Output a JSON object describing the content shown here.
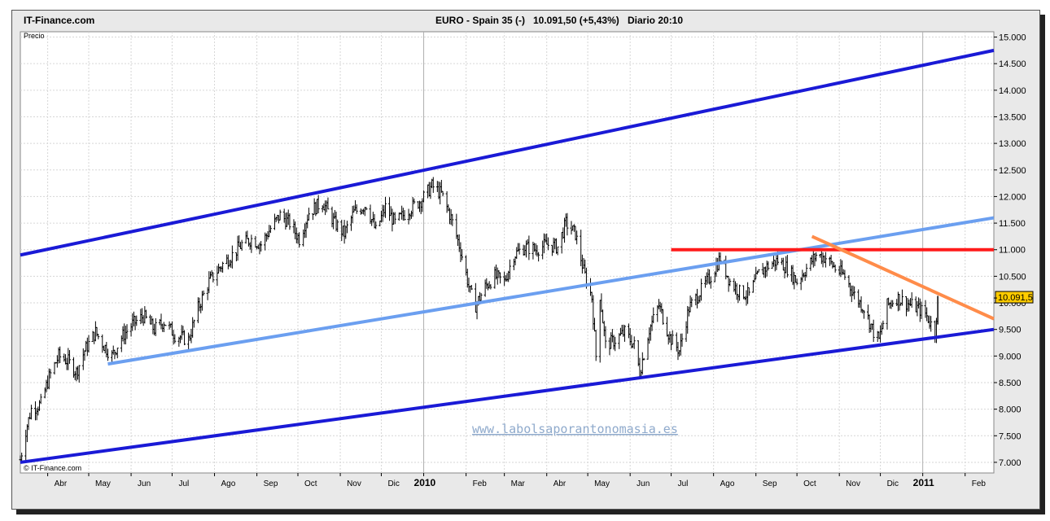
{
  "header": {
    "brand": "IT-Finance.com",
    "instrument": "EURO - Spain 35 (-)",
    "price_change": "10.091,50 (+5,43%)",
    "period_time": "Diario  20:10"
  },
  "panel_label": "Precio",
  "copyright": "© IT-Finance.com",
  "watermark": "www.labolsaporantonomasia.es",
  "current_price_label": "10.091,5",
  "colors": {
    "background": "#ffffff",
    "grid": "#d6d6d6",
    "candles": "#000000",
    "channel_outer": "#1a1ad6",
    "channel_mid": "#6b9ff0",
    "resistance": "#ff1a1a",
    "downtrend": "#ff8c4a",
    "price_box": "#ffcc00"
  },
  "chart_data": {
    "type": "line",
    "subtype": "candlestick-style daily price",
    "title": "EURO - Spain 35 (-)",
    "ylabel": "Precio",
    "ylim": [
      6800,
      15100
    ],
    "yticks": [
      7000,
      7500,
      8000,
      8500,
      9000,
      9500,
      10000,
      10500,
      11000,
      11500,
      12000,
      12500,
      13000,
      13500,
      14000,
      14500,
      15000
    ],
    "ytick_labels": [
      "7.000",
      "7.500",
      "8.000",
      "8.500",
      "9.000",
      "9.500",
      "10.000",
      "10.500",
      "11.000",
      "11.500",
      "12.000",
      "12.500",
      "13.000",
      "13.500",
      "14.000",
      "14.500",
      "15.000"
    ],
    "xlim": [
      "2009-03-12",
      "2011-02-22"
    ],
    "xticks": [
      {
        "date": "2009-04-01",
        "label": "Abr"
      },
      {
        "date": "2009-05-01",
        "label": "May"
      },
      {
        "date": "2009-06-01",
        "label": "Jun"
      },
      {
        "date": "2009-07-01",
        "label": "Jul"
      },
      {
        "date": "2009-08-01",
        "label": "Ago"
      },
      {
        "date": "2009-09-01",
        "label": "Sep"
      },
      {
        "date": "2009-10-01",
        "label": "Oct"
      },
      {
        "date": "2009-11-01",
        "label": "Nov"
      },
      {
        "date": "2009-12-01",
        "label": "Dic"
      },
      {
        "date": "2010-01-01",
        "label": "2010",
        "bold": true
      },
      {
        "date": "2010-02-01",
        "label": "Feb"
      },
      {
        "date": "2010-03-01",
        "label": "Mar"
      },
      {
        "date": "2010-04-01",
        "label": "Abr"
      },
      {
        "date": "2010-05-01",
        "label": "May"
      },
      {
        "date": "2010-06-01",
        "label": "Jun"
      },
      {
        "date": "2010-07-01",
        "label": "Jul"
      },
      {
        "date": "2010-08-01",
        "label": "Ago"
      },
      {
        "date": "2010-09-01",
        "label": "Sep"
      },
      {
        "date": "2010-10-01",
        "label": "Oct"
      },
      {
        "date": "2010-11-01",
        "label": "Nov"
      },
      {
        "date": "2010-12-01",
        "label": "Dic"
      },
      {
        "date": "2011-01-01",
        "label": "2011",
        "bold": true
      },
      {
        "date": "2011-02-01",
        "label": "Feb"
      }
    ],
    "grid": true,
    "price_path": [
      [
        "2009-03-12",
        7050
      ],
      [
        "2009-03-16",
        7600
      ],
      [
        "2009-03-20",
        8000
      ],
      [
        "2009-03-27",
        8100
      ],
      [
        "2009-04-02",
        8600
      ],
      [
        "2009-04-09",
        9000
      ],
      [
        "2009-04-16",
        8900
      ],
      [
        "2009-04-22",
        8700
      ],
      [
        "2009-04-28",
        9100
      ],
      [
        "2009-05-06",
        9450
      ],
      [
        "2009-05-12",
        9200
      ],
      [
        "2009-05-18",
        9000
      ],
      [
        "2009-05-25",
        9350
      ],
      [
        "2009-06-02",
        9600
      ],
      [
        "2009-06-10",
        9750
      ],
      [
        "2009-06-18",
        9500
      ],
      [
        "2009-06-25",
        9650
      ],
      [
        "2009-07-03",
        9400
      ],
      [
        "2009-07-13",
        9300
      ],
      [
        "2009-07-20",
        9900
      ],
      [
        "2009-07-28",
        10400
      ],
      [
        "2009-08-06",
        10700
      ],
      [
        "2009-08-14",
        10900
      ],
      [
        "2009-08-21",
        11100
      ],
      [
        "2009-08-28",
        11200
      ],
      [
        "2009-09-04",
        11100
      ],
      [
        "2009-09-11",
        11400
      ],
      [
        "2009-09-18",
        11650
      ],
      [
        "2009-09-25",
        11500
      ],
      [
        "2009-10-02",
        11200
      ],
      [
        "2009-10-09",
        11700
      ],
      [
        "2009-10-19",
        11900
      ],
      [
        "2009-10-28",
        11500
      ],
      [
        "2009-11-04",
        11300
      ],
      [
        "2009-11-11",
        11700
      ],
      [
        "2009-11-20",
        11850
      ],
      [
        "2009-11-27",
        11350
      ],
      [
        "2009-12-04",
        11800
      ],
      [
        "2009-12-11",
        11500
      ],
      [
        "2009-12-21",
        11750
      ],
      [
        "2009-12-31",
        11950
      ],
      [
        "2010-01-07",
        12200
      ],
      [
        "2010-01-14",
        12050
      ],
      [
        "2010-01-21",
        11600
      ],
      [
        "2010-01-28",
        11000
      ],
      [
        "2010-02-04",
        10200
      ],
      [
        "2010-02-08",
        9950
      ],
      [
        "2010-02-15",
        10300
      ],
      [
        "2010-02-22",
        10500
      ],
      [
        "2010-03-01",
        10400
      ],
      [
        "2010-03-08",
        10900
      ],
      [
        "2010-03-16",
        11050
      ],
      [
        "2010-03-24",
        11000
      ],
      [
        "2010-04-01",
        11100
      ],
      [
        "2010-04-09",
        11050
      ],
      [
        "2010-04-15",
        11500
      ],
      [
        "2010-04-22",
        11300
      ],
      [
        "2010-04-28",
        10600
      ],
      [
        "2010-05-04",
        10100
      ],
      [
        "2010-05-07",
        9000
      ],
      [
        "2010-05-10",
        10150
      ],
      [
        "2010-05-14",
        9200
      ],
      [
        "2010-05-21",
        9300
      ],
      [
        "2010-05-28",
        9450
      ],
      [
        "2010-06-04",
        9200
      ],
      [
        "2010-06-08",
        8700
      ],
      [
        "2010-06-15",
        9500
      ],
      [
        "2010-06-22",
        9950
      ],
      [
        "2010-06-30",
        9350
      ],
      [
        "2010-07-07",
        9100
      ],
      [
        "2010-07-14",
        9900
      ],
      [
        "2010-07-22",
        10200
      ],
      [
        "2010-07-30",
        10500
      ],
      [
        "2010-08-06",
        10850
      ],
      [
        "2010-08-13",
        10400
      ],
      [
        "2010-08-20",
        10200
      ],
      [
        "2010-08-27",
        10150
      ],
      [
        "2010-09-03",
        10550
      ],
      [
        "2010-09-10",
        10700
      ],
      [
        "2010-09-17",
        10800
      ],
      [
        "2010-09-24",
        10650
      ],
      [
        "2010-10-01",
        10400
      ],
      [
        "2010-10-08",
        10650
      ],
      [
        "2010-10-15",
        10900
      ],
      [
        "2010-10-22",
        10850
      ],
      [
        "2010-10-29",
        10650
      ],
      [
        "2010-11-05",
        10500
      ],
      [
        "2010-11-12",
        10150
      ],
      [
        "2010-11-19",
        9900
      ],
      [
        "2010-11-26",
        9450
      ],
      [
        "2010-11-30",
        9300
      ],
      [
        "2010-12-06",
        9950
      ],
      [
        "2010-12-13",
        10100
      ],
      [
        "2010-12-20",
        10000
      ],
      [
        "2010-12-28",
        9900
      ],
      [
        "2011-01-03",
        9800
      ],
      [
        "2011-01-07",
        9600
      ],
      [
        "2011-01-10",
        9450
      ],
      [
        "2011-01-12",
        10091.5
      ]
    ],
    "trend_lines": [
      {
        "name": "channel-upper",
        "color": "#1a1ad6",
        "width": 4,
        "from": [
          "2009-03-12",
          10900
        ],
        "to": [
          "2011-02-22",
          14750
        ]
      },
      {
        "name": "channel-lower",
        "color": "#1a1ad6",
        "width": 4,
        "from": [
          "2009-03-12",
          7000
        ],
        "to": [
          "2011-02-22",
          9500
        ]
      },
      {
        "name": "channel-middle",
        "color": "#6b9ff0",
        "width": 4,
        "from": [
          "2009-05-15",
          8850
        ],
        "to": [
          "2011-02-22",
          11600
        ]
      },
      {
        "name": "resistance",
        "color": "#ff1a1a",
        "width": 4,
        "from": [
          "2010-07-01",
          11000
        ],
        "to": [
          "2011-02-22",
          11000
        ]
      },
      {
        "name": "downtrend",
        "color": "#ff8c4a",
        "width": 4,
        "from": [
          "2010-10-12",
          11250
        ],
        "to": [
          "2011-02-22",
          9700
        ]
      }
    ],
    "last_value": 10091.5
  }
}
